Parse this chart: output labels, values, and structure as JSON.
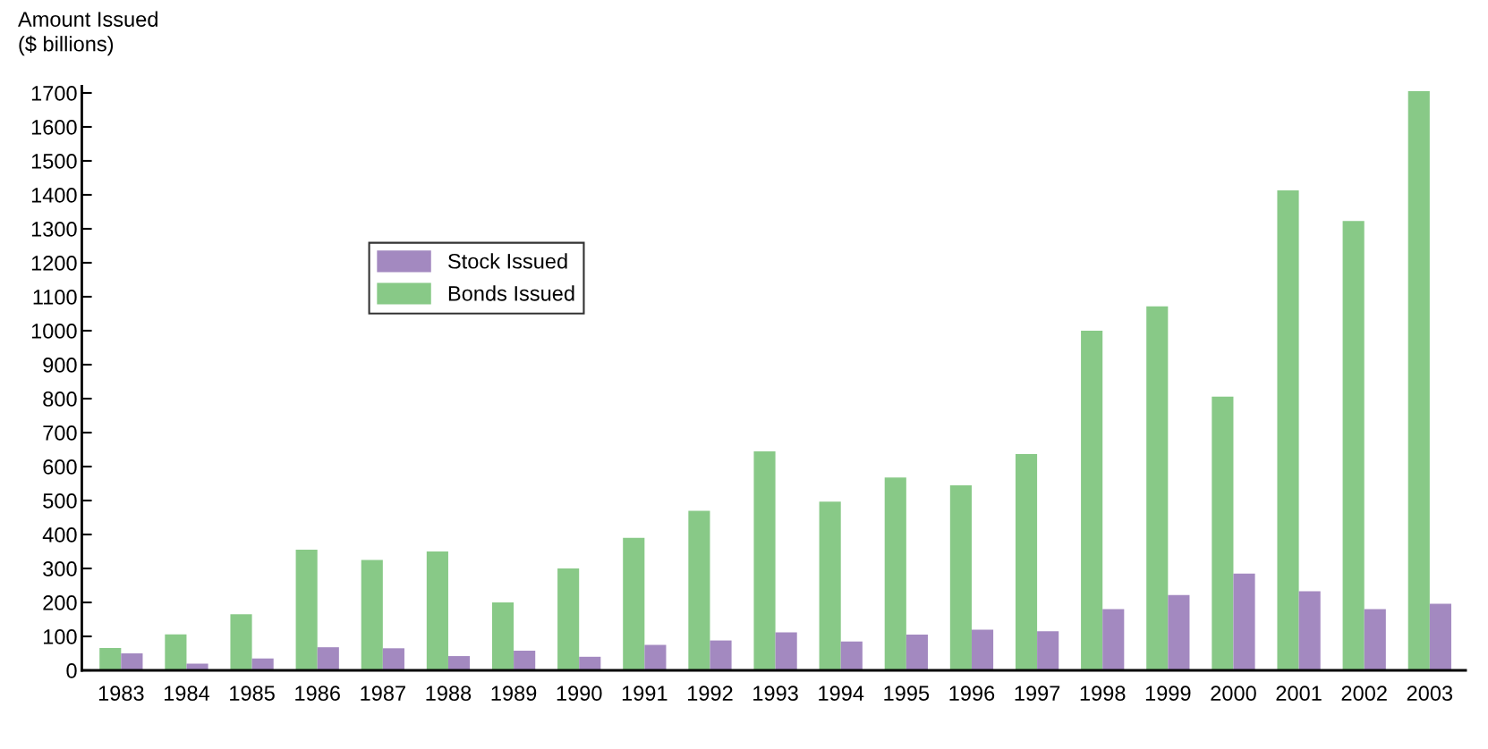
{
  "chart_data": {
    "type": "bar",
    "ylabel": "Amount Issued\n($ billions)",
    "categories": [
      "1983",
      "1984",
      "1985",
      "1986",
      "1987",
      "1988",
      "1989",
      "1990",
      "1991",
      "1992",
      "1993",
      "1994",
      "1995",
      "1996",
      "1997",
      "1998",
      "1999",
      "2000",
      "2001",
      "2002",
      "2003"
    ],
    "series": [
      {
        "name": "Bonds Issued",
        "color": "#88c987",
        "values": [
          66,
          106,
          165,
          355,
          325,
          350,
          200,
          300,
          390,
          470,
          645,
          497,
          568,
          545,
          637,
          1000,
          1072,
          806,
          1413,
          1323,
          1705
        ]
      },
      {
        "name": "Stock Issued",
        "color": "#a389c0",
        "values": [
          50,
          20,
          35,
          68,
          65,
          42,
          58,
          40,
          75,
          88,
          112,
          85,
          105,
          120,
          115,
          180,
          222,
          285,
          233,
          180,
          196
        ]
      }
    ],
    "ylim": [
      0,
      1720
    ],
    "yticks": [
      0,
      100,
      200,
      300,
      400,
      500,
      600,
      700,
      800,
      900,
      1000,
      1100,
      1200,
      1300,
      1400,
      1500,
      1600,
      1700
    ],
    "grid": false,
    "legend": "top left"
  }
}
